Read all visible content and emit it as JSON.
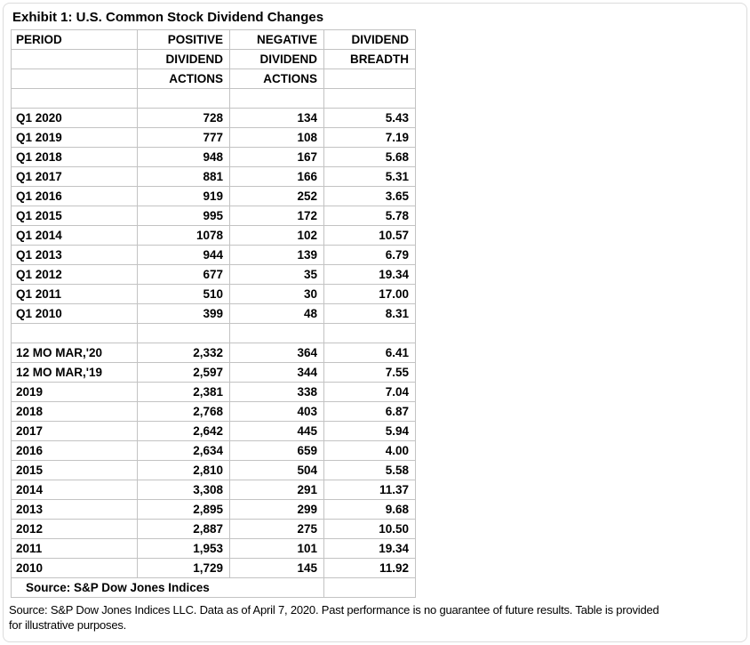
{
  "title": "Exhibit 1: U.S. Common Stock Dividend Changes",
  "table": {
    "columns": [
      "PERIOD",
      "POSITIVE DIVIDEND ACTIONS",
      "NEGATIVE DIVIDEND ACTIONS",
      "DIVIDEND BREADTH"
    ],
    "grid": [
      [
        "PERIOD",
        "POSITIVE",
        "NEGATIVE",
        "DIVIDEND"
      ],
      [
        "",
        "DIVIDEND",
        "DIVIDEND",
        "BREADTH"
      ],
      [
        "",
        "ACTIONS",
        "ACTIONS",
        ""
      ],
      [
        "",
        "",
        "",
        ""
      ],
      [
        "Q1 2020",
        "728",
        "134",
        "5.43"
      ],
      [
        "Q1 2019",
        "777",
        "108",
        "7.19"
      ],
      [
        "Q1 2018",
        "948",
        "167",
        "5.68"
      ],
      [
        "Q1 2017",
        "881",
        "166",
        "5.31"
      ],
      [
        "Q1 2016",
        "919",
        "252",
        "3.65"
      ],
      [
        "Q1 2015",
        "995",
        "172",
        "5.78"
      ],
      [
        "Q1 2014",
        "1078",
        "102",
        "10.57"
      ],
      [
        "Q1 2013",
        "944",
        "139",
        "6.79"
      ],
      [
        "Q1 2012",
        "677",
        "35",
        "19.34"
      ],
      [
        "Q1 2011",
        "510",
        "30",
        "17.00"
      ],
      [
        "Q1 2010",
        "399",
        "48",
        "8.31"
      ],
      [
        "",
        "",
        "",
        ""
      ],
      [
        "12 MO MAR,'20",
        "2,332",
        "364",
        "6.41"
      ],
      [
        "12 MO MAR,'19",
        "2,597",
        "344",
        "7.55"
      ],
      [
        "2019",
        "2,381",
        "338",
        "7.04"
      ],
      [
        "2018",
        "2,768",
        "403",
        "6.87"
      ],
      [
        "2017",
        "2,642",
        "445",
        "5.94"
      ],
      [
        "2016",
        "2,634",
        "659",
        "4.00"
      ],
      [
        "2015",
        "2,810",
        "504",
        "5.58"
      ],
      [
        "2014",
        "3,308",
        "291",
        "11.37"
      ],
      [
        "2013",
        "2,895",
        "299",
        "9.68"
      ],
      [
        "2012",
        "2,887",
        "275",
        "10.50"
      ],
      [
        "2011",
        "1,953",
        "101",
        "19.34"
      ],
      [
        "2010",
        "1,729",
        "145",
        "11.92"
      ]
    ],
    "source_row": "Source: S&P Dow Jones Indices"
  },
  "footnote": {
    "lines": [
      "Source: S&P Dow Jones Indices LLC. Data as of April 7, 2020. Past performance is no guarantee of future results. Table is provided",
      "for illustrative purposes."
    ]
  },
  "colors": {
    "border": "#c3c3c3",
    "frame_border": "#dcdcdc",
    "text": "#000000",
    "background": "#ffffff"
  }
}
